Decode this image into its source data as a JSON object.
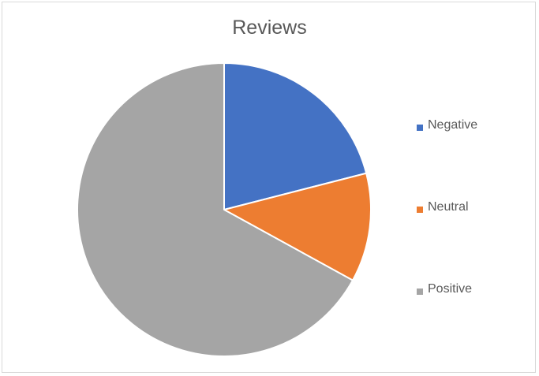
{
  "chart_data": {
    "type": "pie",
    "title": "Reviews",
    "categories": [
      "Negative",
      "Neutral",
      "Positive"
    ],
    "values": [
      21,
      12,
      67
    ],
    "colors": [
      "#4472c4",
      "#ed7d31",
      "#a5a5a5"
    ],
    "start_angle": "12 o'clock",
    "direction": "clockwise",
    "legend_position": "right"
  }
}
